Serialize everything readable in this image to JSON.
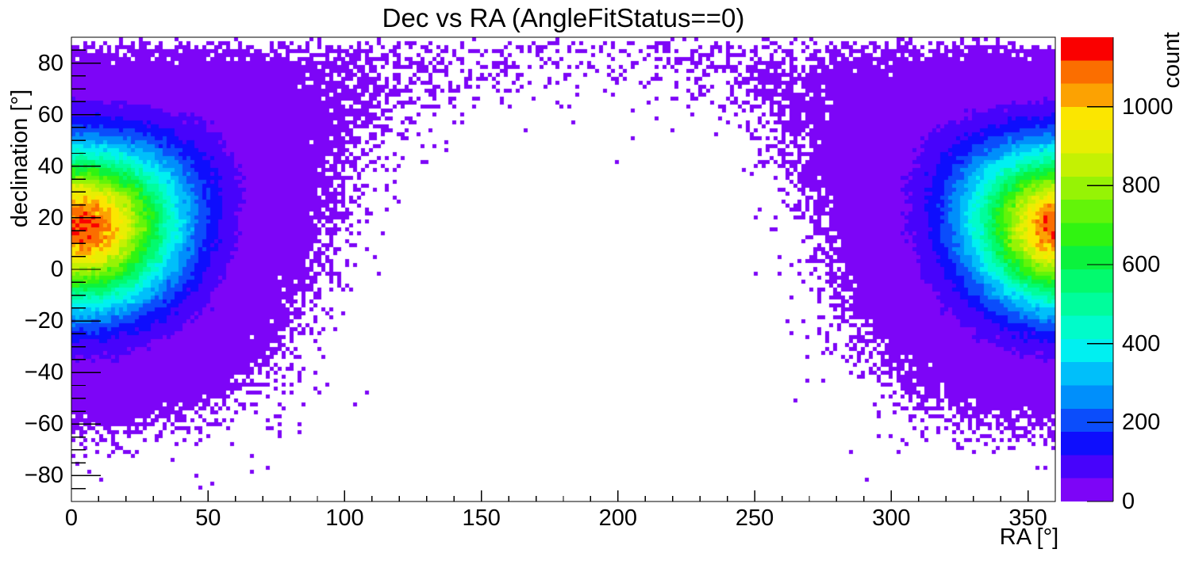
{
  "chart_data": {
    "type": "heatmap",
    "title": "Dec vs RA (AngleFitStatus==0)",
    "xlabel": "RA [°]",
    "ylabel": "declination [°]",
    "zlabel": "count",
    "xlim": [
      0,
      360
    ],
    "ylim": [
      -90,
      90
    ],
    "zlim": [
      0,
      1176
    ],
    "x_ticks": [
      0,
      50,
      100,
      150,
      200,
      250,
      300,
      350
    ],
    "x_minor_step": 10,
    "y_ticks": [
      -80,
      -60,
      -40,
      -20,
      0,
      20,
      40,
      60,
      80
    ],
    "y_minor_step": 5,
    "z_ticks": [
      0,
      200,
      400,
      600,
      800,
      1000
    ],
    "grid": false,
    "n_contour_levels": 20,
    "palette": [
      "#7d05f7",
      "#4703fb",
      "#0e0efd",
      "#0b4dfb",
      "#008ffb",
      "#00bffa",
      "#00f0f1",
      "#00fcca",
      "#00fd9c",
      "#02fa6e",
      "#0bf23d",
      "#30f411",
      "#63f409",
      "#96f305",
      "#c4f103",
      "#e8ee03",
      "#fbe600",
      "#fca202",
      "#fb6e00",
      "#fa0000"
    ],
    "empty_bin_color": "#ffffff",
    "frame_color": "#000000",
    "bins": {
      "nx": 248,
      "ny": 117
    },
    "source_model": {
      "peak_ra_deg": 4,
      "peak_dec_deg": 19,
      "angular_sigma_deg": 22.5,
      "peak_bin_count": 1120,
      "max_bin_count": 1176,
      "solid_angle_weighted": true,
      "poisson_noise": true,
      "ra_wraparound": true,
      "hotspots": [
        {
          "ra_deg": 4,
          "dec_deg": 19,
          "count": 1176
        },
        {
          "ra_deg": 356,
          "dec_deg": 19,
          "count": 1050
        }
      ],
      "note": "Single angular-Gaussian event blob centred near RA 0/360 deg, Dec +19 deg; appears as two hot spots at left and right plot edges because RA wraps. Central region (RA ~110-300, Dec below ~60) has zero counts; sparse single-count speckle along the blob boundary and across the top rows near Dec 90."
    }
  }
}
